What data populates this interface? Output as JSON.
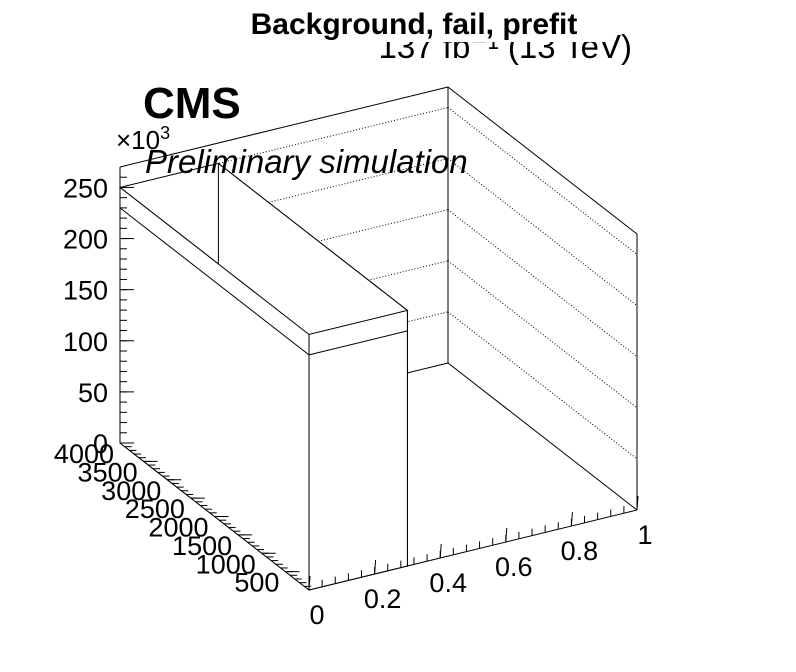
{
  "chart_data": {
    "type": "bar",
    "title": "Background, fail, prefit",
    "lumi_label": "137 fb⁻¹ (13 TeV)",
    "experiment_label": "CMS",
    "extra_label": "Preliminary simulation",
    "x_axis": {
      "range": [
        0,
        1
      ],
      "ticks": [
        {
          "label": "0",
          "value": 0
        },
        {
          "label": "0.2",
          "value": 0.2
        },
        {
          "label": "0.4",
          "value": 0.4
        },
        {
          "label": "0.6",
          "value": 0.6
        },
        {
          "label": "0.8",
          "value": 0.8
        },
        {
          "label": "1",
          "value": 1
        }
      ]
    },
    "y_axis": {
      "range": [
        0,
        4000
      ],
      "ticks": [
        {
          "label": "500",
          "value": 500
        },
        {
          "label": "1000",
          "value": 1000
        },
        {
          "label": "1500",
          "value": 1500
        },
        {
          "label": "2000",
          "value": 2000
        },
        {
          "label": "2500",
          "value": 2500
        },
        {
          "label": "3000",
          "value": 3000
        },
        {
          "label": "3500",
          "value": 3500
        },
        {
          "label": "4000",
          "value": 4000
        }
      ]
    },
    "z_axis": {
      "range": [
        0,
        270
      ],
      "multiplier": "×10",
      "multiplier_exp": "3",
      "ticks": [
        {
          "label": "0",
          "value": 0
        },
        {
          "label": "50",
          "value": 50
        },
        {
          "label": "100",
          "value": 100
        },
        {
          "label": "150",
          "value": 150
        },
        {
          "label": "200",
          "value": 200
        },
        {
          "label": "250",
          "value": 250
        }
      ]
    },
    "bins": [
      {
        "x_range": [
          0,
          0.3
        ],
        "y_range": [
          0,
          4000
        ],
        "value": 250
      }
    ],
    "grid": true
  }
}
